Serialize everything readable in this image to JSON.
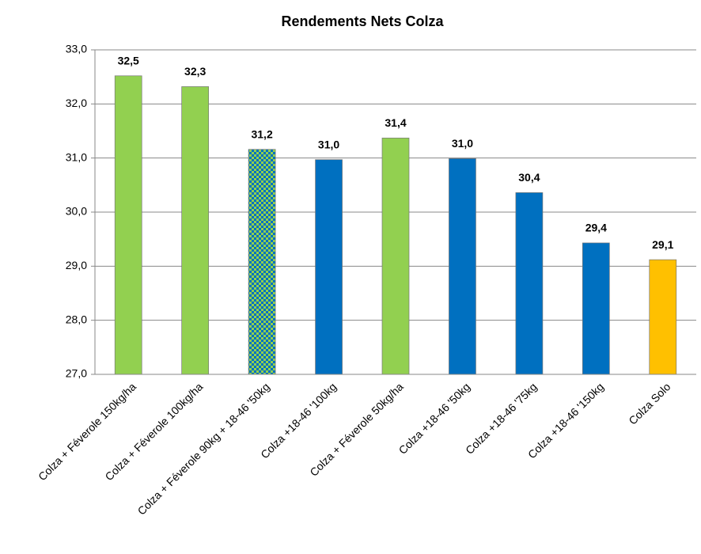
{
  "chart_data": {
    "type": "bar",
    "title": "Rendements Nets Colza",
    "categories": [
      "Colza + Féverole 150kg/ha",
      "Colza + Féverole 100kg/ha",
      "Colza + Féverole 90kg + 18-46 '50kg",
      "Colza +18-46 '100kg",
      "Colza + Féverole 50kg/ha",
      "Colza +18-46 '50kg",
      "Colza +18-46 '75kg",
      "Colza +18-46 '150kg",
      "Colza Solo"
    ],
    "values": [
      32.52,
      32.32,
      31.16,
      30.97,
      31.37,
      30.99,
      30.36,
      29.43,
      29.12
    ],
    "value_labels": [
      "32,5",
      "32,3",
      "31,2",
      "31,0",
      "31,4",
      "31,0",
      "30,4",
      "29,4",
      "29,1"
    ],
    "colors": [
      "#92d050",
      "#92d050",
      [
        "#0070c0",
        "#92d050"
      ],
      "#0070c0",
      "#92d050",
      "#0070c0",
      "#0070c0",
      "#0070c0",
      "#ffc000"
    ],
    "ylim": [
      27,
      33
    ],
    "yticks": [
      {
        "value": 27,
        "label": "27,0"
      },
      {
        "value": 28,
        "label": "28,0"
      },
      {
        "value": 29,
        "label": "29,0"
      },
      {
        "value": 30,
        "label": "30,0"
      },
      {
        "value": 31,
        "label": "31,0"
      },
      {
        "value": 32,
        "label": "32,0"
      },
      {
        "value": 33,
        "label": "33,0"
      }
    ],
    "grid": true
  }
}
